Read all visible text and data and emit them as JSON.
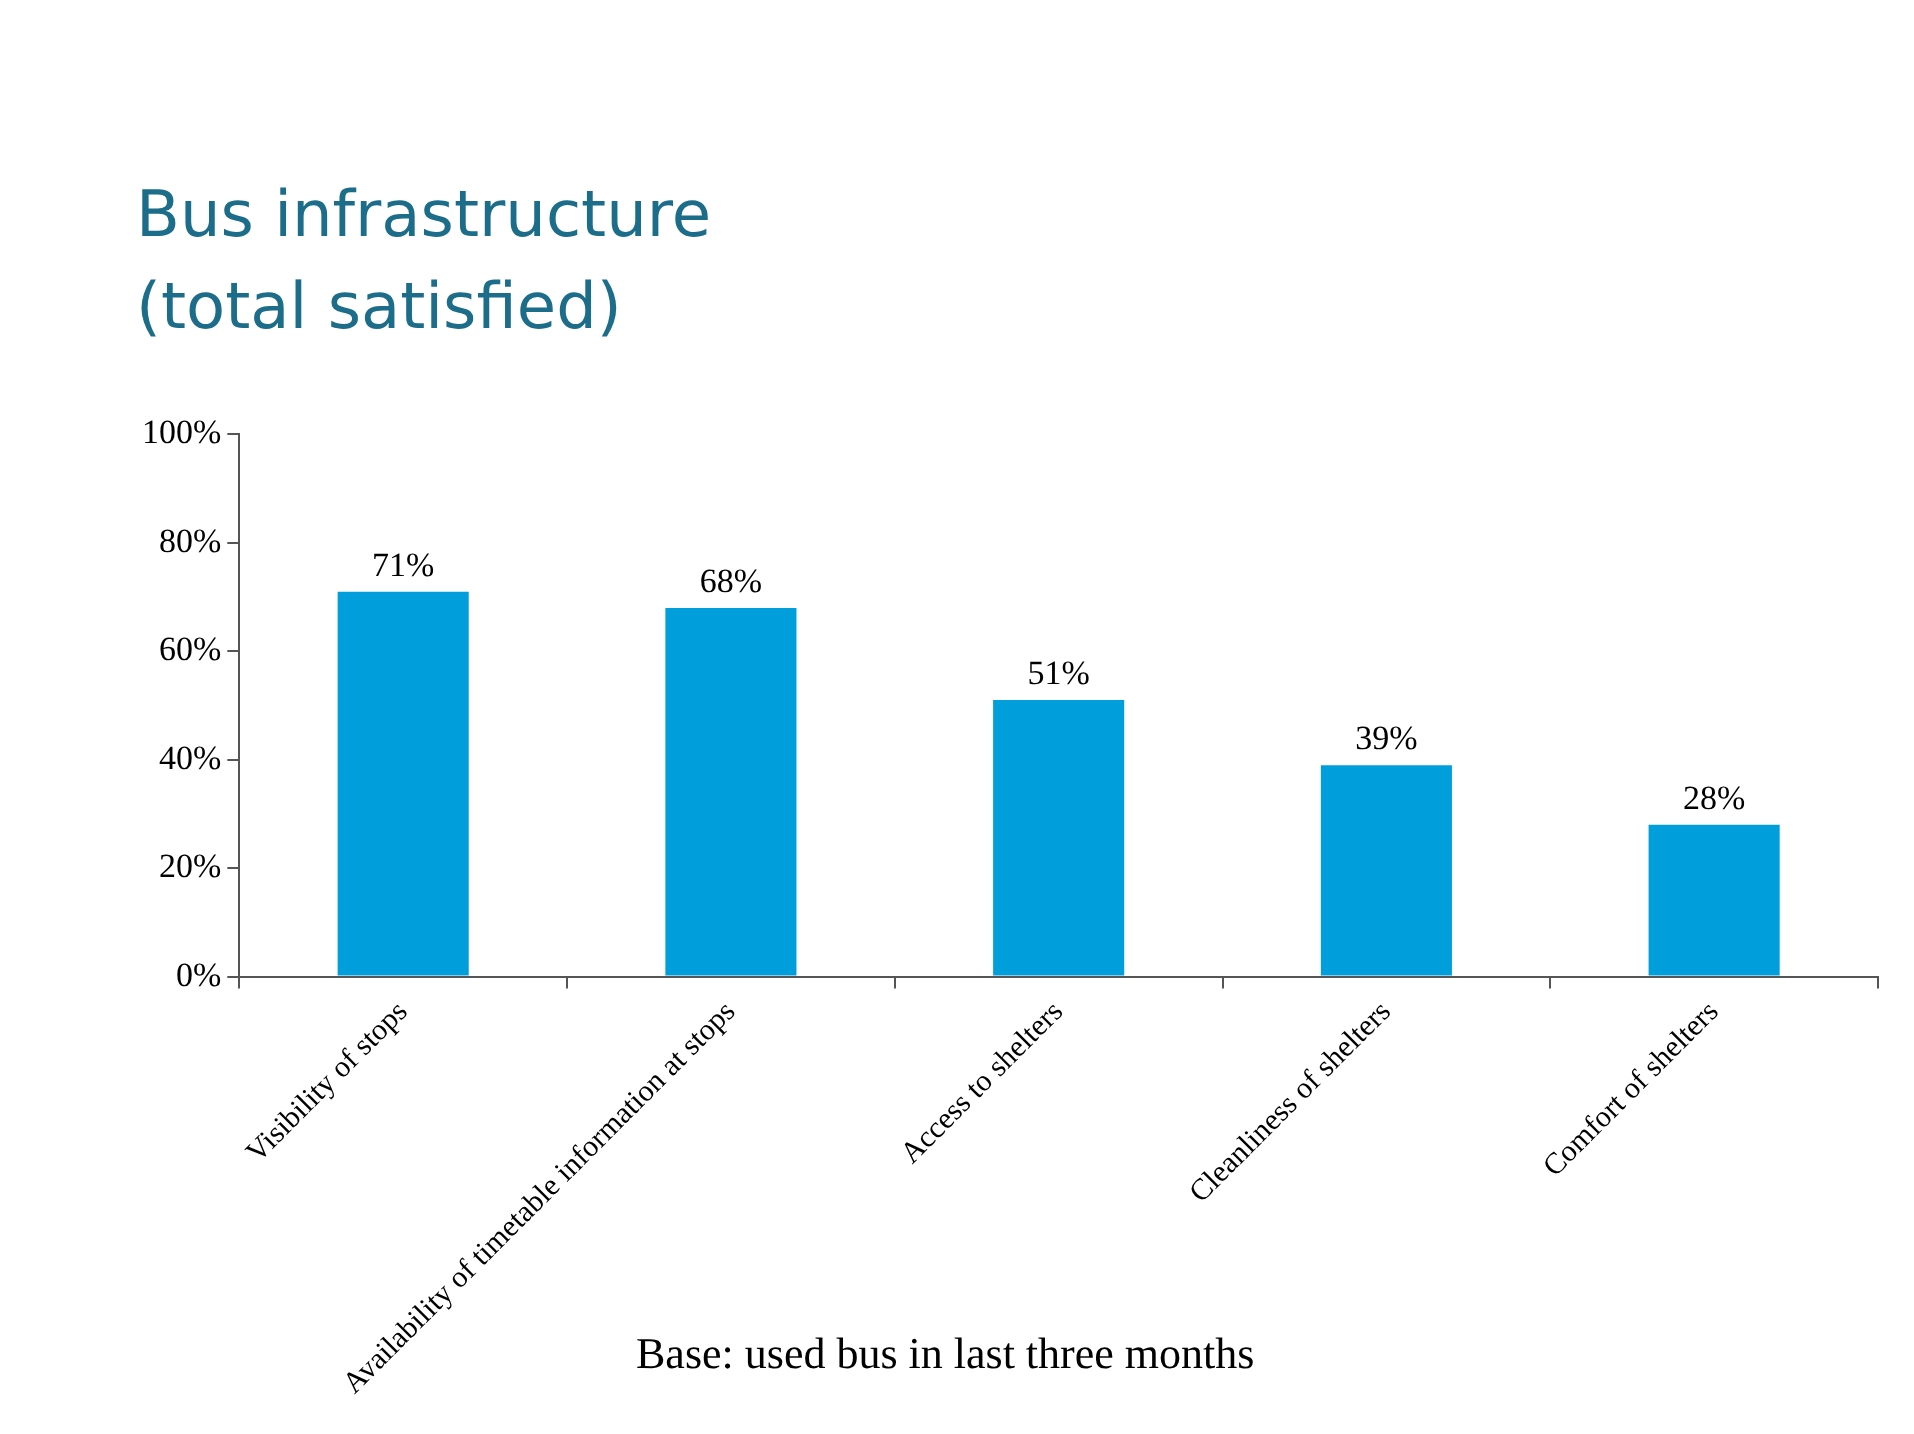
{
  "chart_data": {
    "type": "bar",
    "title": "Bus infrastructure",
    "subtitle": "(total satisfied)",
    "categories": [
      "Visibility of stops",
      "Availability of timetable information at stops",
      "Access to shelters",
      "Cleanliness of shelters",
      "Comfort of shelters"
    ],
    "values": [
      71,
      68,
      51,
      39,
      28
    ],
    "color": "#009fdb",
    "value_labels": [
      "71%",
      "68%",
      "51%",
      "39%",
      "28%"
    ],
    "ylim": [
      0,
      100
    ],
    "yticks": [
      {
        "value": 0,
        "label": "0%"
      },
      {
        "value": 20,
        "label": "20%"
      },
      {
        "value": 40,
        "label": "40%"
      },
      {
        "value": 60,
        "label": "60%"
      },
      {
        "value": 80,
        "label": "80%"
      },
      {
        "value": 100,
        "label": "100%"
      }
    ],
    "grid": false,
    "legend": false,
    "annotations": [
      "Base: used bus in last three months"
    ]
  }
}
